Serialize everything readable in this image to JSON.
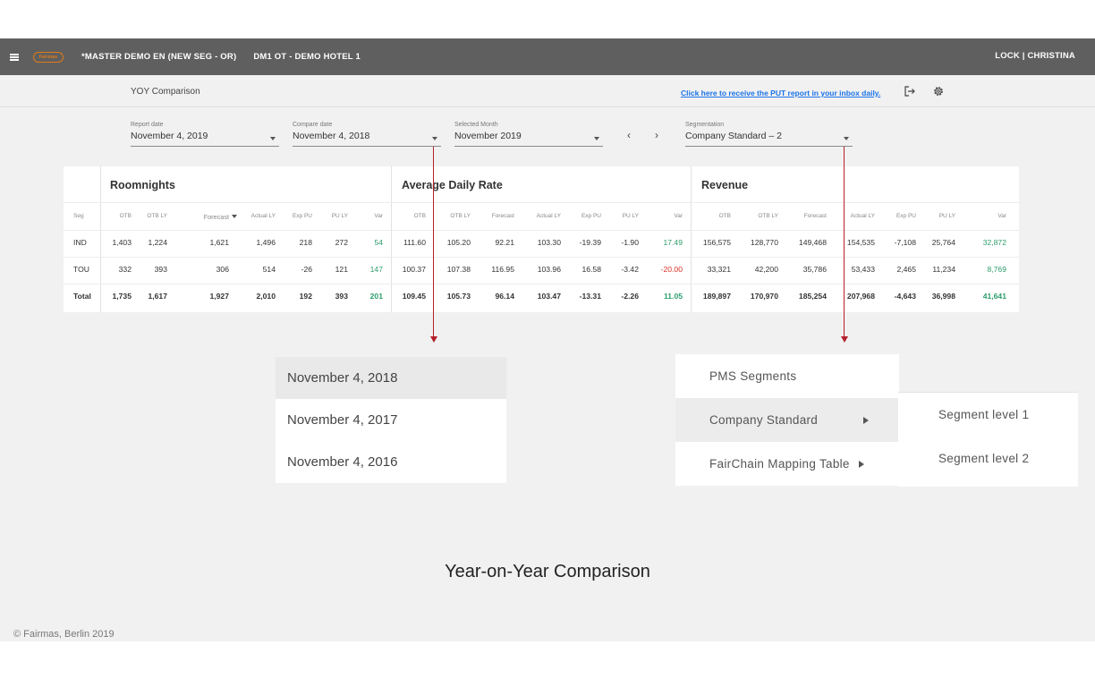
{
  "topbar": {
    "logo_text": "Fairmas",
    "title1": "*MASTER DEMO EN (NEW SEG - OR)",
    "title2": "DM1 OT - DEMO HOTEL 1",
    "user": "LOCK | CHRISTINA"
  },
  "subbar": {
    "title": "YOY Comparison",
    "put_link": "Click here to receive the PUT report in your inbox daily."
  },
  "filters": {
    "report_date": {
      "label": "Report date",
      "value": "November 4, 2019"
    },
    "compare_date": {
      "label": "Compare date",
      "value": "November 4, 2018"
    },
    "selected_month": {
      "label": "Selected Month",
      "value": "November 2019"
    },
    "segmentation": {
      "label": "Segmentation",
      "value": "Company Standard – 2"
    },
    "prev": "‹",
    "next": "›"
  },
  "table": {
    "sections": [
      "Roomnights",
      "Average Daily Rate",
      "Revenue"
    ],
    "seg_header": "Seg",
    "headers": {
      "roomnights": [
        "OTB",
        "OTB LY",
        "Forecast",
        "Actual LY",
        "Exp PU",
        "PU LY",
        "Var"
      ],
      "adr": [
        "OTB",
        "OTB LY",
        "Forecast",
        "Actual LY",
        "Exp PU",
        "PU LY",
        "Var"
      ],
      "revenue": [
        "OTB",
        "OTB LY",
        "Forecast",
        "Actual LY",
        "Exp PU",
        "PU LY",
        "Var"
      ]
    },
    "rows": [
      {
        "seg": "IND",
        "roomnights": [
          "1,403",
          "1,224",
          "1,621",
          "1,496",
          "218",
          "272",
          "54"
        ],
        "adr": [
          "111.60",
          "105.20",
          "92.21",
          "103.30",
          "-19.39",
          "-1.90",
          "17.49"
        ],
        "revenue": [
          "156,575",
          "128,770",
          "149,468",
          "154,535",
          "-7,108",
          "25,764",
          "32,872"
        ],
        "var_colors": [
          "green",
          "green",
          "green"
        ]
      },
      {
        "seg": "TOU",
        "roomnights": [
          "332",
          "393",
          "306",
          "514",
          "-26",
          "121",
          "147"
        ],
        "adr": [
          "100.37",
          "107.38",
          "116.95",
          "103.96",
          "16.58",
          "-3.42",
          "-20.00"
        ],
        "revenue": [
          "33,321",
          "42,200",
          "35,786",
          "53,433",
          "2,465",
          "11,234",
          "8,769"
        ],
        "var_colors": [
          "green",
          "red",
          "green"
        ]
      },
      {
        "seg": "Total",
        "roomnights": [
          "1,735",
          "1,617",
          "1,927",
          "2,010",
          "192",
          "393",
          "201"
        ],
        "adr": [
          "109.45",
          "105.73",
          "96.14",
          "103.47",
          "-13.31",
          "-2.26",
          "11.05"
        ],
        "revenue": [
          "189,897",
          "170,970",
          "185,254",
          "207,968",
          "-4,643",
          "36,998",
          "41,641"
        ],
        "var_colors": [
          "green",
          "green",
          "green"
        ]
      }
    ]
  },
  "date_menu": [
    "November 4, 2018",
    "November 4, 2017",
    "November 4, 2016"
  ],
  "seg_menu": [
    "PMS Segments",
    "Company Standard",
    "FairChain Mapping Table"
  ],
  "sub_menu": [
    "Segment level 1",
    "Segment level 2"
  ],
  "caption": "Year-on-Year Comparison",
  "footer": "© Fairmas, Berlin 2019",
  "colors": {
    "topbar": "#5f5f5f",
    "link": "#1a73e8",
    "arrow": "#b5202a",
    "positive": "#2e9d6b",
    "negative": "#d93025"
  }
}
